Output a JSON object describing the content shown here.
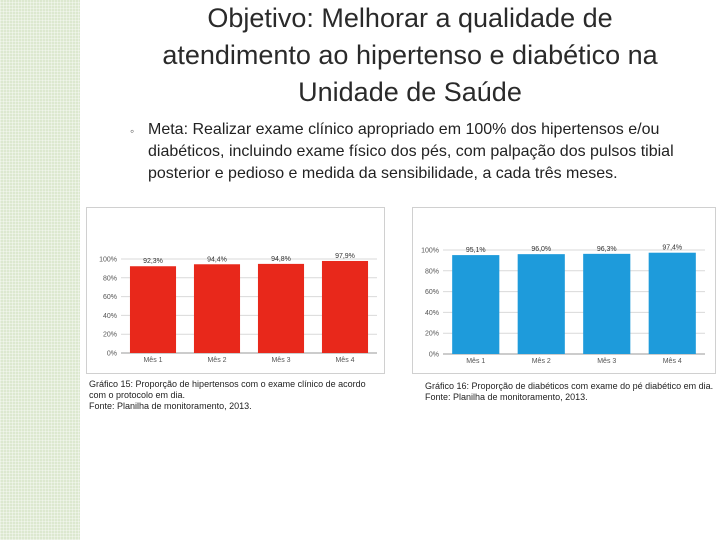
{
  "title": {
    "prefix": "Objetivo: ",
    "rest": "Melhorar a qualidade de atendimento ao hipertenso e diabético na Unidade de Saúde"
  },
  "goal": "Meta: Realizar exame clínico apropriado em 100% dos hipertensos e/ou diabéticos, incluindo exame físico dos pés, com palpação dos pulsos tibial posterior e pedioso e medida da sensibilidade, a cada três meses.",
  "colors": {
    "chart1_bar": "#e8281b",
    "chart2_bar": "#1e9bdb",
    "stripe": "#dce8cf"
  },
  "chart_data": [
    {
      "type": "bar",
      "categories": [
        "Mês 1",
        "Mês 2",
        "Mês 3",
        "Mês 4"
      ],
      "values": [
        92.3,
        94.4,
        94.8,
        97.9
      ],
      "value_labels": [
        "92,3%",
        "94,4%",
        "94,8%",
        "97,9%"
      ],
      "yticks": [
        "0%",
        "20%",
        "40%",
        "60%",
        "80%",
        "100%"
      ],
      "ylim": [
        0,
        100
      ],
      "caption": {
        "line1": "Gráfico 15: Proporção de hipertensos com o exame clínico de acordo com o protocolo em dia.",
        "line2": "Fonte: Planilha de monitoramento, 2013."
      }
    },
    {
      "type": "bar",
      "categories": [
        "Mês 1",
        "Mês 2",
        "Mês 3",
        "Mês 4"
      ],
      "values": [
        95.1,
        96.0,
        96.3,
        97.4
      ],
      "value_labels": [
        "95,1%",
        "96,0%",
        "96,3%",
        "97,4%"
      ],
      "yticks": [
        "0%",
        "20%",
        "40%",
        "60%",
        "80%",
        "100%"
      ],
      "ylim": [
        0,
        100
      ],
      "caption": {
        "line1": "Gráfico 16: Proporção de diabéticos com exame do pé diabético em dia.",
        "line2": "Fonte: Planilha de monitoramento, 2013."
      }
    }
  ]
}
